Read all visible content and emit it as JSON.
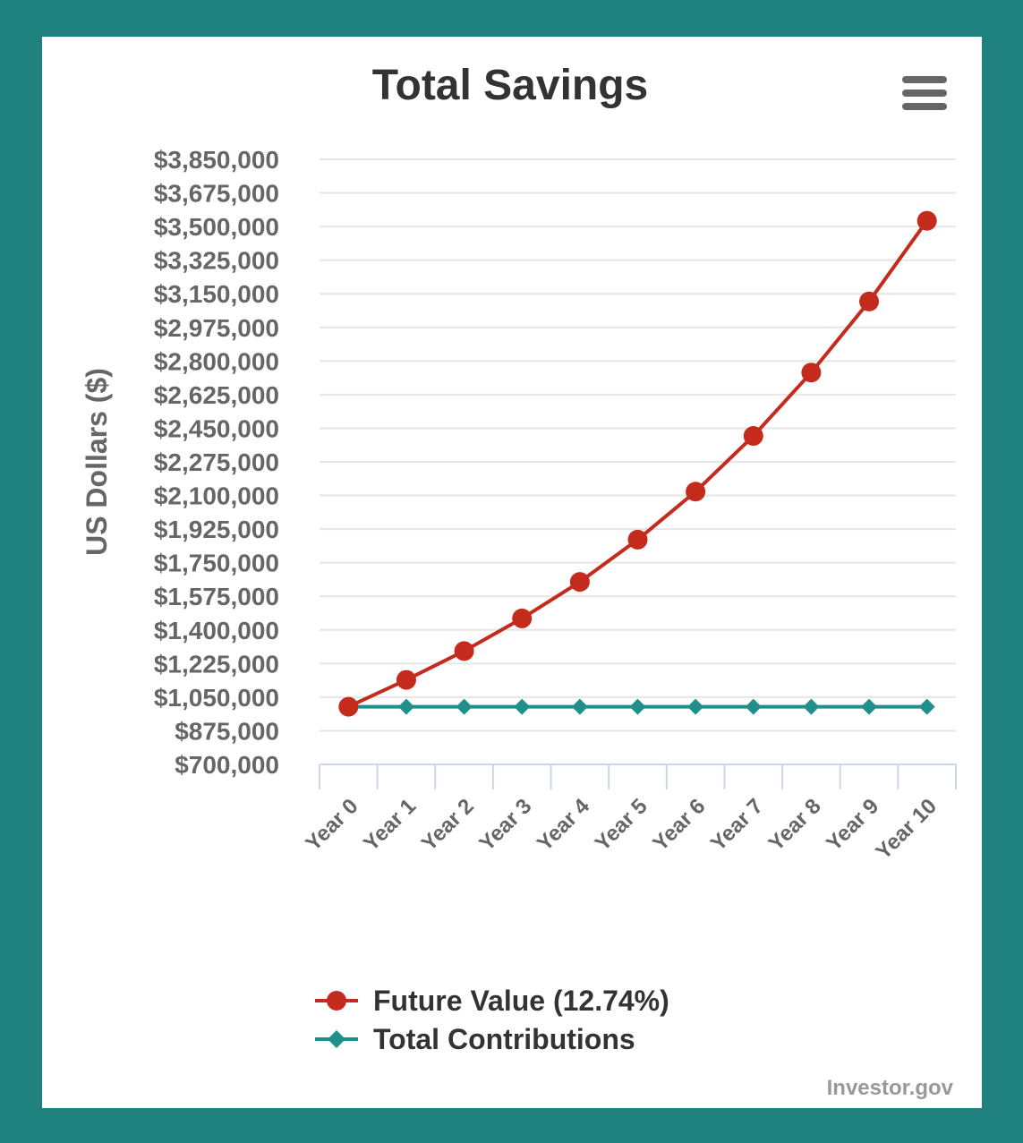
{
  "chart_data": {
    "type": "line",
    "title": "Total Savings",
    "ylabel": "US Dollars ($)",
    "xlabel": "",
    "categories": [
      "Year 0",
      "Year 1",
      "Year 2",
      "Year 3",
      "Year 4",
      "Year 5",
      "Year 6",
      "Year 7",
      "Year 8",
      "Year 9",
      "Year 10"
    ],
    "ylim": [
      700000,
      3850000
    ],
    "yticks": [
      3850000,
      3675000,
      3500000,
      3325000,
      3150000,
      2975000,
      2800000,
      2625000,
      2450000,
      2275000,
      2100000,
      1925000,
      1750000,
      1575000,
      1400000,
      1225000,
      1050000,
      875000,
      700000
    ],
    "ytick_labels": [
      "$3,850,000",
      "$3,675,000",
      "$3,500,000",
      "$3,325,000",
      "$3,150,000",
      "$2,975,000",
      "$2,800,000",
      "$2,625,000",
      "$2,450,000",
      "$2,275,000",
      "$2,100,000",
      "$1,925,000",
      "$1,750,000",
      "$1,575,000",
      "$1,400,000",
      "$1,225,000",
      "$1,050,000",
      "$875,000",
      "$700,000"
    ],
    "grid": true,
    "legend_position": "bottom",
    "series": [
      {
        "name": "Future Value (12.74%)",
        "color": "#c42b1c",
        "marker": "circle",
        "values": [
          1000000,
          1140000,
          1290000,
          1460000,
          1650000,
          1870000,
          2120000,
          2410000,
          2740000,
          3110000,
          3530000
        ]
      },
      {
        "name": "Total Contributions",
        "color": "#1f8f8c",
        "marker": "diamond",
        "values": [
          1000000,
          1000000,
          1000000,
          1000000,
          1000000,
          1000000,
          1000000,
          1000000,
          1000000,
          1000000,
          1000000
        ]
      }
    ]
  },
  "menu_icon": "hamburger-menu-icon",
  "credit": "Investor.gov"
}
